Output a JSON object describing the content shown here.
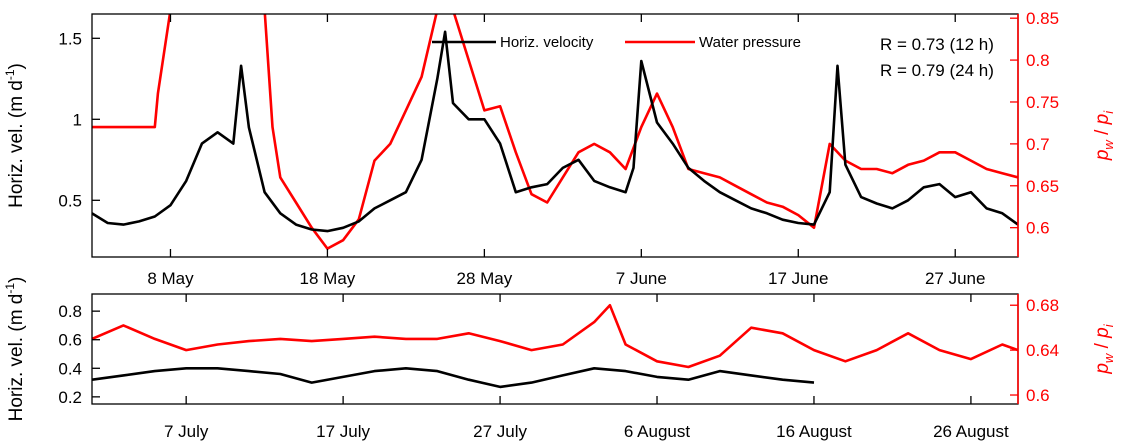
{
  "chart_data": [
    {
      "type": "line",
      "name": "top-panel",
      "x_axis": {
        "type": "date",
        "range": [
          "2012-05-03",
          "2012-07-01"
        ],
        "ticks": [
          "8 May",
          "18 May",
          "28 May",
          "7 June",
          "17 June",
          "27 June"
        ],
        "tick_dates": [
          "2012-05-08",
          "2012-05-18",
          "2012-05-28",
          "2012-06-07",
          "2012-06-17",
          "2012-06-27"
        ]
      },
      "y_left": {
        "label_main": "Horiz. vel. (m d",
        "label_sup": "-1",
        "label_end": ")",
        "ylim": [
          0.15,
          1.65
        ],
        "ticks": [
          "0.5",
          "1",
          "1.5"
        ],
        "tick_values": [
          0.5,
          1.0,
          1.5
        ],
        "color": "#000000"
      },
      "y_right": {
        "label_p": "p",
        "label_w": "w",
        "label_i": "i",
        "label_slash": " / ",
        "ylim": [
          0.565,
          0.855
        ],
        "ticks": [
          "0.6",
          "0.65",
          "0.7",
          "0.75",
          "0.8",
          "0.85"
        ],
        "tick_values": [
          0.6,
          0.65,
          0.7,
          0.75,
          0.8,
          0.85
        ],
        "color": "#ff0000"
      },
      "legend": {
        "position": "top",
        "entries": [
          {
            "label": "Horiz. velocity",
            "color": "#000000"
          },
          {
            "label": "Water pressure",
            "color": "#ff0000"
          }
        ]
      },
      "annotations": [
        "R = 0.73 (12 h)",
        "R = 0.79 (24 h)"
      ],
      "series": [
        {
          "name": "Horiz. velocity",
          "axis": "left",
          "color": "#000000",
          "points": [
            [
              "2012-05-03",
              0.42
            ],
            [
              "2012-05-04",
              0.36
            ],
            [
              "2012-05-05",
              0.35
            ],
            [
              "2012-05-06",
              0.37
            ],
            [
              "2012-05-07",
              0.4
            ],
            [
              "2012-05-08",
              0.47
            ],
            [
              "2012-05-09",
              0.62
            ],
            [
              "2012-05-10",
              0.85
            ],
            [
              "2012-05-11",
              0.92
            ],
            [
              "2012-05-12",
              0.85
            ],
            [
              "2012-05-12.5",
              1.33
            ],
            [
              "2012-05-13",
              0.95
            ],
            [
              "2012-05-14",
              0.55
            ],
            [
              "2012-05-15",
              0.42
            ],
            [
              "2012-05-16",
              0.35
            ],
            [
              "2012-05-17",
              0.32
            ],
            [
              "2012-05-18",
              0.31
            ],
            [
              "2012-05-19",
              0.33
            ],
            [
              "2012-05-20",
              0.37
            ],
            [
              "2012-05-21",
              0.45
            ],
            [
              "2012-05-22",
              0.5
            ],
            [
              "2012-05-23",
              0.55
            ],
            [
              "2012-05-24",
              0.75
            ],
            [
              "2012-05-25",
              1.25
            ],
            [
              "2012-05-25.5",
              1.54
            ],
            [
              "2012-05-26",
              1.1
            ],
            [
              "2012-05-27",
              1.0
            ],
            [
              "2012-05-28",
              1.0
            ],
            [
              "2012-05-29",
              0.85
            ],
            [
              "2012-05-30",
              0.55
            ],
            [
              "2012-05-31",
              0.58
            ],
            [
              "2012-06-01",
              0.6
            ],
            [
              "2012-06-02",
              0.7
            ],
            [
              "2012-06-03",
              0.75
            ],
            [
              "2012-06-04",
              0.62
            ],
            [
              "2012-06-05",
              0.58
            ],
            [
              "2012-06-06",
              0.55
            ],
            [
              "2012-06-06.5",
              0.7
            ],
            [
              "2012-06-07",
              1.36
            ],
            [
              "2012-06-08",
              0.98
            ],
            [
              "2012-06-09",
              0.85
            ],
            [
              "2012-06-10",
              0.7
            ],
            [
              "2012-06-11",
              0.62
            ],
            [
              "2012-06-12",
              0.55
            ],
            [
              "2012-06-13",
              0.5
            ],
            [
              "2012-06-14",
              0.45
            ],
            [
              "2012-06-15",
              0.42
            ],
            [
              "2012-06-16",
              0.38
            ],
            [
              "2012-06-17",
              0.36
            ],
            [
              "2012-06-18",
              0.35
            ],
            [
              "2012-06-19",
              0.55
            ],
            [
              "2012-06-19.5",
              1.33
            ],
            [
              "2012-06-20",
              0.72
            ],
            [
              "2012-06-21",
              0.52
            ],
            [
              "2012-06-22",
              0.48
            ],
            [
              "2012-06-23",
              0.45
            ],
            [
              "2012-06-24",
              0.5
            ],
            [
              "2012-06-25",
              0.58
            ],
            [
              "2012-06-26",
              0.6
            ],
            [
              "2012-06-27",
              0.52
            ],
            [
              "2012-06-28",
              0.55
            ],
            [
              "2012-06-29",
              0.45
            ],
            [
              "2012-06-30",
              0.42
            ],
            [
              "2012-07-01",
              0.35
            ]
          ]
        },
        {
          "name": "Water pressure",
          "axis": "right",
          "color": "#ff0000",
          "points": [
            [
              "2012-05-03",
              0.72
            ],
            [
              "2012-05-07",
              0.72
            ],
            [
              "2012-05-07.2",
              0.76
            ],
            [
              "2012-05-08",
              0.86
            ],
            [
              "2012-05-14",
              0.86
            ],
            [
              "2012-05-14.5",
              0.72
            ],
            [
              "2012-05-15",
              0.66
            ],
            [
              "2012-05-16",
              0.63
            ],
            [
              "2012-05-17",
              0.6
            ],
            [
              "2012-05-18",
              0.575
            ],
            [
              "2012-05-19",
              0.585
            ],
            [
              "2012-05-20",
              0.61
            ],
            [
              "2012-05-21",
              0.68
            ],
            [
              "2012-05-22",
              0.7
            ],
            [
              "2012-05-23",
              0.74
            ],
            [
              "2012-05-24",
              0.78
            ],
            [
              "2012-05-25",
              0.86
            ],
            [
              "2012-05-26",
              0.86
            ],
            [
              "2012-05-27",
              0.8
            ],
            [
              "2012-05-28",
              0.74
            ],
            [
              "2012-05-29",
              0.745
            ],
            [
              "2012-05-30",
              0.69
            ],
            [
              "2012-05-31",
              0.64
            ],
            [
              "2012-06-01",
              0.63
            ],
            [
              "2012-06-02",
              0.66
            ],
            [
              "2012-06-03",
              0.69
            ],
            [
              "2012-06-04",
              0.7
            ],
            [
              "2012-06-05",
              0.69
            ],
            [
              "2012-06-06",
              0.67
            ],
            [
              "2012-06-07",
              0.72
            ],
            [
              "2012-06-08",
              0.76
            ],
            [
              "2012-06-09",
              0.72
            ],
            [
              "2012-06-10",
              0.67
            ],
            [
              "2012-06-11",
              0.665
            ],
            [
              "2012-06-12",
              0.66
            ],
            [
              "2012-06-13",
              0.65
            ],
            [
              "2012-06-14",
              0.64
            ],
            [
              "2012-06-15",
              0.63
            ],
            [
              "2012-06-16",
              0.625
            ],
            [
              "2012-06-17",
              0.615
            ],
            [
              "2012-06-18",
              0.6
            ],
            [
              "2012-06-19",
              0.7
            ],
            [
              "2012-06-20",
              0.68
            ],
            [
              "2012-06-21",
              0.67
            ],
            [
              "2012-06-22",
              0.67
            ],
            [
              "2012-06-23",
              0.665
            ],
            [
              "2012-06-24",
              0.675
            ],
            [
              "2012-06-25",
              0.68
            ],
            [
              "2012-06-26",
              0.69
            ],
            [
              "2012-06-27",
              0.69
            ],
            [
              "2012-06-28",
              0.68
            ],
            [
              "2012-06-29",
              0.67
            ],
            [
              "2012-06-30",
              0.665
            ],
            [
              "2012-07-01",
              0.66
            ]
          ]
        }
      ]
    },
    {
      "type": "line",
      "name": "bottom-panel",
      "x_axis": {
        "type": "date",
        "range": [
          "2012-07-01",
          "2012-08-29"
        ],
        "ticks": [
          "7 July",
          "17 July",
          "27 July",
          "6 August",
          "16 August",
          "26 August"
        ],
        "tick_dates": [
          "2012-07-07",
          "2012-07-17",
          "2012-07-27",
          "2012-08-06",
          "2012-08-16",
          "2012-08-26"
        ]
      },
      "y_left": {
        "label_main": "Horiz. vel. (m d",
        "label_sup": "-1",
        "label_end": ")",
        "ylim": [
          0.15,
          0.92
        ],
        "ticks": [
          "0.2",
          "0.4",
          "0.6",
          "0.8"
        ],
        "tick_values": [
          0.2,
          0.4,
          0.6,
          0.8
        ],
        "color": "#000000"
      },
      "y_right": {
        "label_p": "p",
        "label_w": "w",
        "label_i": "i",
        "label_slash": " / ",
        "ylim": [
          0.592,
          0.69
        ],
        "ticks": [
          "0.6",
          "0.64",
          "0.68"
        ],
        "tick_values": [
          0.6,
          0.64,
          0.68
        ],
        "color": "#ff0000"
      },
      "series": [
        {
          "name": "Horiz. velocity",
          "axis": "left",
          "color": "#000000",
          "points": [
            [
              "2012-07-01",
              0.32
            ],
            [
              "2012-07-03",
              0.35
            ],
            [
              "2012-07-05",
              0.38
            ],
            [
              "2012-07-07",
              0.4
            ],
            [
              "2012-07-09",
              0.4
            ],
            [
              "2012-07-11",
              0.38
            ],
            [
              "2012-07-13",
              0.36
            ],
            [
              "2012-07-15",
              0.3
            ],
            [
              "2012-07-17",
              0.34
            ],
            [
              "2012-07-19",
              0.38
            ],
            [
              "2012-07-21",
              0.4
            ],
            [
              "2012-07-23",
              0.38
            ],
            [
              "2012-07-25",
              0.32
            ],
            [
              "2012-07-27",
              0.27
            ],
            [
              "2012-07-29",
              0.3
            ],
            [
              "2012-07-31",
              0.35
            ],
            [
              "2012-08-02",
              0.4
            ],
            [
              "2012-08-04",
              0.38
            ],
            [
              "2012-08-06",
              0.34
            ],
            [
              "2012-08-08",
              0.32
            ],
            [
              "2012-08-10",
              0.38
            ],
            [
              "2012-08-12",
              0.35
            ],
            [
              "2012-08-14",
              0.32
            ],
            [
              "2012-08-16",
              0.3
            ]
          ]
        },
        {
          "name": "Water pressure",
          "axis": "right",
          "color": "#ff0000",
          "points": [
            [
              "2012-07-01",
              0.65
            ],
            [
              "2012-07-03",
              0.662
            ],
            [
              "2012-07-05",
              0.65
            ],
            [
              "2012-07-07",
              0.64
            ],
            [
              "2012-07-09",
              0.645
            ],
            [
              "2012-07-11",
              0.648
            ],
            [
              "2012-07-13",
              0.65
            ],
            [
              "2012-07-15",
              0.648
            ],
            [
              "2012-07-17",
              0.65
            ],
            [
              "2012-07-19",
              0.652
            ],
            [
              "2012-07-21",
              0.65
            ],
            [
              "2012-07-23",
              0.65
            ],
            [
              "2012-07-25",
              0.655
            ],
            [
              "2012-07-27",
              0.648
            ],
            [
              "2012-07-29",
              0.64
            ],
            [
              "2012-07-31",
              0.645
            ],
            [
              "2012-08-02",
              0.665
            ],
            [
              "2012-08-03",
              0.68
            ],
            [
              "2012-08-04",
              0.645
            ],
            [
              "2012-08-06",
              0.63
            ],
            [
              "2012-08-08",
              0.625
            ],
            [
              "2012-08-10",
              0.635
            ],
            [
              "2012-08-12",
              0.66
            ],
            [
              "2012-08-14",
              0.655
            ],
            [
              "2012-08-16",
              0.64
            ],
            [
              "2012-08-18",
              0.63
            ],
            [
              "2012-08-20",
              0.64
            ],
            [
              "2012-08-22",
              0.655
            ],
            [
              "2012-08-24",
              0.64
            ],
            [
              "2012-08-26",
              0.632
            ],
            [
              "2012-08-28",
              0.645
            ],
            [
              "2012-08-29",
              0.64
            ]
          ]
        }
      ]
    }
  ]
}
